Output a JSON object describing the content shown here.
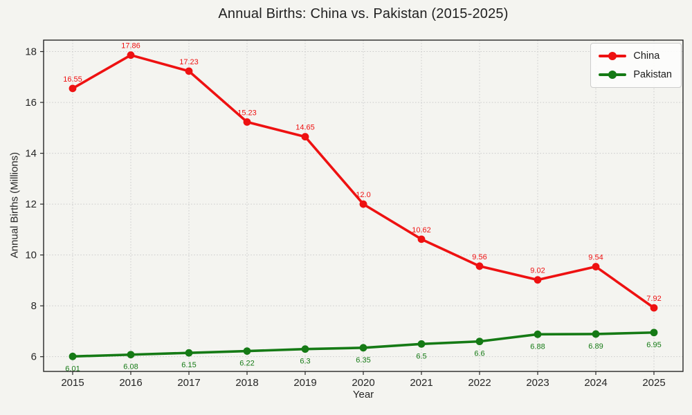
{
  "chart_data": {
    "type": "line",
    "title": "Annual Births: China vs. Pakistan (2015-2025)",
    "xlabel": "Year",
    "ylabel": "Annual Births (Millions)",
    "x": [
      2015,
      2016,
      2017,
      2018,
      2019,
      2020,
      2021,
      2022,
      2023,
      2024,
      2025
    ],
    "series": [
      {
        "name": "China",
        "color": "#ee1111",
        "values": [
          16.55,
          17.86,
          17.23,
          15.23,
          14.65,
          12.0,
          10.62,
          9.56,
          9.02,
          9.54,
          7.92
        ],
        "labels": [
          "16.55",
          "17.86",
          "17.23",
          "15.23",
          "14.65",
          "12.0",
          "10.62",
          "9.56",
          "9.02",
          "9.54",
          "7.92"
        ],
        "label_position": "above"
      },
      {
        "name": "Pakistan",
        "color": "#157a15",
        "values": [
          6.01,
          6.08,
          6.15,
          6.22,
          6.3,
          6.35,
          6.5,
          6.6,
          6.88,
          6.89,
          6.95
        ],
        "labels": [
          "6.01",
          "6.08",
          "6.15",
          "6.22",
          "6.3",
          "6.35",
          "6.5",
          "6.6",
          "6.88",
          "6.89",
          "6.95"
        ],
        "label_position": "below"
      }
    ],
    "yticks": [
      6,
      8,
      10,
      12,
      14,
      16,
      18
    ],
    "xlim": [
      2014.5,
      2025.5
    ],
    "ylim": [
      5.42,
      18.45
    ],
    "grid": true,
    "grid_style": "dotted",
    "legend_position": "upper right",
    "background": "#f4f4f0"
  }
}
